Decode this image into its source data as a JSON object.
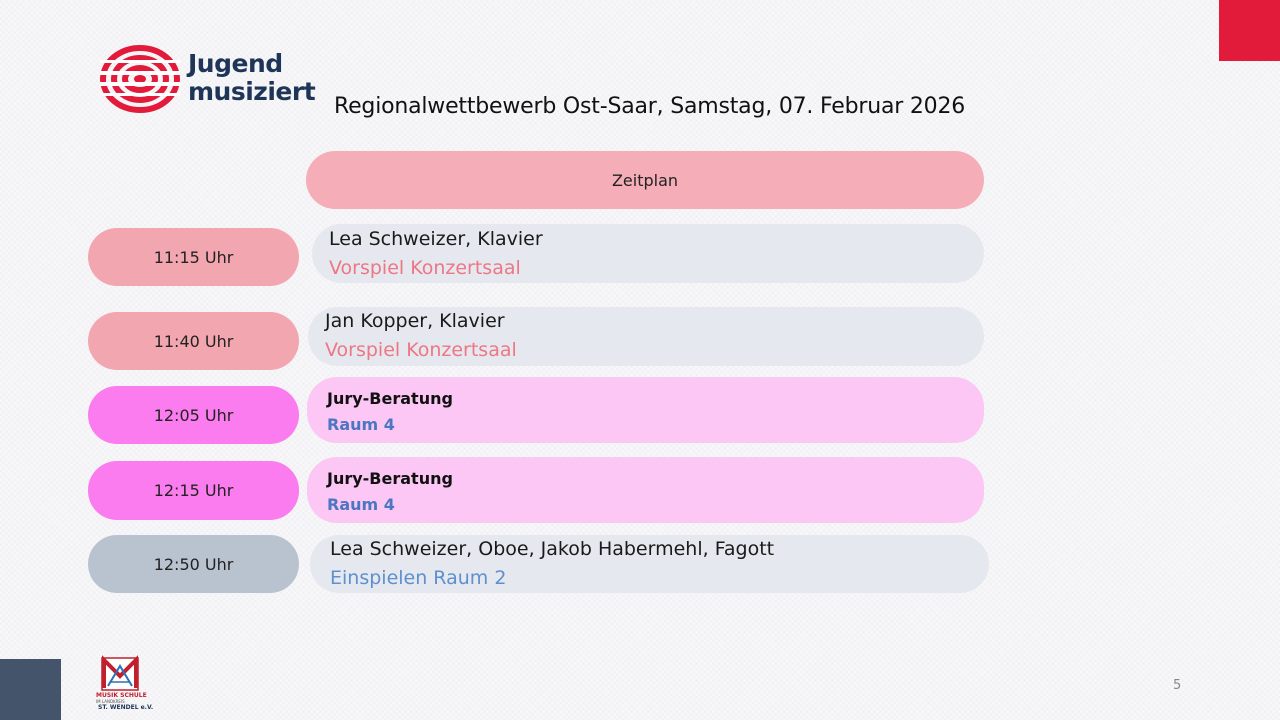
{
  "logo": {
    "line1": "Jugend",
    "line2": "musiziert"
  },
  "title": "Regionalwettbewerb Ost-Saar, Samstag, 07. Februar 2026",
  "header": "Zeitplan",
  "schedule": [
    {
      "time": "11:15 Uhr",
      "line1": "Lea Schweizer, Klavier",
      "line2": "Vorspiel Konzertsaal"
    },
    {
      "time": "11:40 Uhr",
      "line1": "Jan Kopper, Klavier",
      "line2": "Vorspiel Konzertsaal"
    },
    {
      "time": "12:05 Uhr",
      "line1": "Jury-Beratung",
      "line2": "Raum 4"
    },
    {
      "time": "12:15 Uhr",
      "line1": "Jury-Beratung",
      "line2": "Raum 4"
    },
    {
      "time": "12:50 Uhr",
      "line1": "Lea Schweizer, Oboe, Jakob Habermehl, Fagott",
      "line2": "Einspielen Raum 2"
    }
  ],
  "footer_logo": {
    "line1": "MUSIK SCHULE",
    "line2": "IM LANDKREIS",
    "line3": "ST. WENDEL e.V."
  },
  "page_number": "5",
  "colors": {
    "accent_red": "#e31b3a",
    "navy": "#44546a",
    "pill_red": "#f2a7b0",
    "pill_pink": "#fa7cee",
    "pill_gray": "#b9c3d0"
  }
}
